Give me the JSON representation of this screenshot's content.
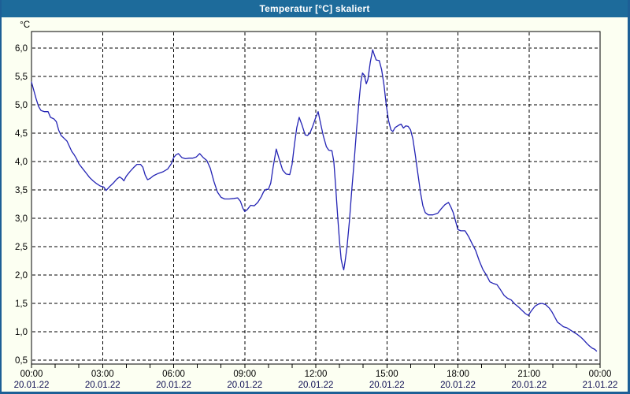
{
  "window": {
    "title": "Temperatur [°C] skaliert",
    "title_bar_color": "#1d6b9b",
    "border_color": "#1d5f96",
    "outer_background": "#fcfff2"
  },
  "chart_data": {
    "type": "line",
    "title": "Temperatur [°C] skaliert",
    "unit_label": "°C",
    "grid": "dashed-black",
    "legend": "none",
    "plot_background": "#ffffff",
    "line_color": "#2323b4",
    "axis_color": "#000000",
    "tick_text_color": "#000000",
    "date_text_color": "#0d0d52",
    "ylim": [
      0.431,
      6.292
    ],
    "yticks": [
      0.5,
      1.0,
      1.5,
      2.0,
      2.5,
      3.0,
      3.5,
      4.0,
      4.5,
      5.0,
      5.5,
      6.0
    ],
    "ytick_labels": [
      "0,5",
      "1,0",
      "1,5",
      "2,0",
      "2,5",
      "3,0",
      "3,5",
      "4,0",
      "4,5",
      "5,0",
      "5,5",
      "6,0"
    ],
    "x_hours_range": [
      0,
      24
    ],
    "x_minor_step_hours": 1,
    "x_major_ticks": [
      {
        "hour": 0,
        "time": "00:00",
        "date": "20.01.22"
      },
      {
        "hour": 3,
        "time": "03:00",
        "date": "20.01.22"
      },
      {
        "hour": 6,
        "time": "06:00",
        "date": "20.01.22"
      },
      {
        "hour": 9,
        "time": "09:00",
        "date": "20.01.22"
      },
      {
        "hour": 12,
        "time": "12:00",
        "date": "20.01.22"
      },
      {
        "hour": 15,
        "time": "15:00",
        "date": "20.01.22"
      },
      {
        "hour": 18,
        "time": "18:00",
        "date": "20.01.22"
      },
      {
        "hour": 21,
        "time": "21:00",
        "date": "20.01.22"
      },
      {
        "hour": 24,
        "time": "00:00",
        "date": "21.01.22"
      }
    ],
    "series": [
      {
        "name": "Temperatur",
        "points": [
          [
            0,
            5.4
          ],
          [
            0.1,
            5.25
          ],
          [
            0.2,
            5.1
          ],
          [
            0.3,
            4.97
          ],
          [
            0.4,
            4.9
          ],
          [
            0.55,
            4.88
          ],
          [
            0.7,
            4.88
          ],
          [
            0.8,
            4.78
          ],
          [
            0.95,
            4.75
          ],
          [
            1.05,
            4.7
          ],
          [
            1.15,
            4.55
          ],
          [
            1.25,
            4.46
          ],
          [
            1.4,
            4.4
          ],
          [
            1.5,
            4.36
          ],
          [
            1.6,
            4.27
          ],
          [
            1.7,
            4.18
          ],
          [
            1.8,
            4.12
          ],
          [
            1.9,
            4.05
          ],
          [
            2,
            3.96
          ],
          [
            2.15,
            3.88
          ],
          [
            2.3,
            3.8
          ],
          [
            2.45,
            3.72
          ],
          [
            2.6,
            3.66
          ],
          [
            2.75,
            3.61
          ],
          [
            2.9,
            3.57
          ],
          [
            3.05,
            3.55
          ],
          [
            3.15,
            3.49
          ],
          [
            3.3,
            3.56
          ],
          [
            3.45,
            3.62
          ],
          [
            3.6,
            3.69
          ],
          [
            3.72,
            3.73
          ],
          [
            3.82,
            3.7
          ],
          [
            3.9,
            3.66
          ],
          [
            4,
            3.74
          ],
          [
            4.15,
            3.82
          ],
          [
            4.3,
            3.89
          ],
          [
            4.45,
            3.95
          ],
          [
            4.6,
            3.95
          ],
          [
            4.7,
            3.9
          ],
          [
            4.8,
            3.76
          ],
          [
            4.9,
            3.68
          ],
          [
            5,
            3.7
          ],
          [
            5.15,
            3.75
          ],
          [
            5.35,
            3.79
          ],
          [
            5.55,
            3.82
          ],
          [
            5.75,
            3.87
          ],
          [
            5.9,
            3.96
          ],
          [
            6,
            4.07
          ],
          [
            6.1,
            4.12
          ],
          [
            6.2,
            4.14
          ],
          [
            6.35,
            4.07
          ],
          [
            6.5,
            4.05
          ],
          [
            6.65,
            4.06
          ],
          [
            6.8,
            4.06
          ],
          [
            6.95,
            4.08
          ],
          [
            7.1,
            4.14
          ],
          [
            7.25,
            4.07
          ],
          [
            7.4,
            4.02
          ],
          [
            7.55,
            3.88
          ],
          [
            7.7,
            3.65
          ],
          [
            7.85,
            3.46
          ],
          [
            8,
            3.37
          ],
          [
            8.15,
            3.34
          ],
          [
            8.35,
            3.34
          ],
          [
            8.55,
            3.35
          ],
          [
            8.7,
            3.36
          ],
          [
            8.82,
            3.3
          ],
          [
            8.92,
            3.18
          ],
          [
            9,
            3.12
          ],
          [
            9.1,
            3.15
          ],
          [
            9.25,
            3.23
          ],
          [
            9.4,
            3.22
          ],
          [
            9.55,
            3.28
          ],
          [
            9.7,
            3.38
          ],
          [
            9.8,
            3.47
          ],
          [
            9.9,
            3.51
          ],
          [
            10,
            3.51
          ],
          [
            10.1,
            3.62
          ],
          [
            10.2,
            3.9
          ],
          [
            10.33,
            4.22
          ],
          [
            10.45,
            4.05
          ],
          [
            10.6,
            3.85
          ],
          [
            10.75,
            3.78
          ],
          [
            10.9,
            3.77
          ],
          [
            11,
            3.95
          ],
          [
            11.1,
            4.3
          ],
          [
            11.2,
            4.6
          ],
          [
            11.3,
            4.78
          ],
          [
            11.42,
            4.64
          ],
          [
            11.55,
            4.47
          ],
          [
            11.65,
            4.46
          ],
          [
            11.75,
            4.5
          ],
          [
            11.85,
            4.6
          ],
          [
            12,
            4.78
          ],
          [
            12.1,
            4.88
          ],
          [
            12.2,
            4.68
          ],
          [
            12.32,
            4.45
          ],
          [
            12.45,
            4.26
          ],
          [
            12.55,
            4.2
          ],
          [
            12.68,
            4.19
          ],
          [
            12.76,
            4
          ],
          [
            12.84,
            3.55
          ],
          [
            12.92,
            3.05
          ],
          [
            13,
            2.6
          ],
          [
            13.07,
            2.28
          ],
          [
            13.13,
            2.16
          ],
          [
            13.18,
            2.09
          ],
          [
            13.24,
            2.25
          ],
          [
            13.32,
            2.5
          ],
          [
            13.42,
            2.95
          ],
          [
            13.52,
            3.5
          ],
          [
            13.62,
            4
          ],
          [
            13.72,
            4.55
          ],
          [
            13.82,
            5.05
          ],
          [
            13.9,
            5.4
          ],
          [
            13.97,
            5.56
          ],
          [
            14.05,
            5.52
          ],
          [
            14.13,
            5.37
          ],
          [
            14.2,
            5.45
          ],
          [
            14.3,
            5.75
          ],
          [
            14.4,
            5.97
          ],
          [
            14.47,
            5.88
          ],
          [
            14.55,
            5.79
          ],
          [
            14.68,
            5.78
          ],
          [
            14.78,
            5.62
          ],
          [
            14.88,
            5.35
          ],
          [
            14.97,
            5.02
          ],
          [
            15.07,
            4.72
          ],
          [
            15.17,
            4.56
          ],
          [
            15.25,
            4.53
          ],
          [
            15.35,
            4.6
          ],
          [
            15.5,
            4.64
          ],
          [
            15.6,
            4.66
          ],
          [
            15.7,
            4.59
          ],
          [
            15.8,
            4.63
          ],
          [
            15.9,
            4.62
          ],
          [
            16,
            4.56
          ],
          [
            16.1,
            4.4
          ],
          [
            16.2,
            4.12
          ],
          [
            16.32,
            3.75
          ],
          [
            16.42,
            3.45
          ],
          [
            16.52,
            3.22
          ],
          [
            16.62,
            3.1
          ],
          [
            16.75,
            3.06
          ],
          [
            16.95,
            3.06
          ],
          [
            17.15,
            3.09
          ],
          [
            17.3,
            3.17
          ],
          [
            17.45,
            3.24
          ],
          [
            17.6,
            3.28
          ],
          [
            17.7,
            3.2
          ],
          [
            17.8,
            3.1
          ],
          [
            17.9,
            2.95
          ],
          [
            18,
            2.8
          ],
          [
            18.12,
            2.78
          ],
          [
            18.3,
            2.78
          ],
          [
            18.45,
            2.68
          ],
          [
            18.6,
            2.55
          ],
          [
            18.75,
            2.43
          ],
          [
            18.9,
            2.25
          ],
          [
            19.05,
            2.1
          ],
          [
            19.2,
            2
          ],
          [
            19.35,
            1.88
          ],
          [
            19.5,
            1.85
          ],
          [
            19.65,
            1.83
          ],
          [
            19.8,
            1.74
          ],
          [
            19.95,
            1.64
          ],
          [
            20.1,
            1.59
          ],
          [
            20.25,
            1.56
          ],
          [
            20.4,
            1.49
          ],
          [
            20.55,
            1.44
          ],
          [
            20.7,
            1.38
          ],
          [
            20.85,
            1.32
          ],
          [
            20.97,
            1.29
          ],
          [
            21.1,
            1.37
          ],
          [
            21.25,
            1.45
          ],
          [
            21.4,
            1.49
          ],
          [
            21.55,
            1.5
          ],
          [
            21.7,
            1.48
          ],
          [
            21.85,
            1.42
          ],
          [
            21.97,
            1.35
          ],
          [
            22.1,
            1.25
          ],
          [
            22.2,
            1.17
          ],
          [
            22.3,
            1.14
          ],
          [
            22.45,
            1.09
          ],
          [
            22.6,
            1.07
          ],
          [
            22.75,
            1.03
          ],
          [
            22.9,
            0.99
          ],
          [
            23.05,
            0.95
          ],
          [
            23.2,
            0.9
          ],
          [
            23.3,
            0.86
          ],
          [
            23.45,
            0.79
          ],
          [
            23.55,
            0.75
          ],
          [
            23.67,
            0.71
          ],
          [
            23.78,
            0.69
          ],
          [
            23.85,
            0.66
          ]
        ]
      }
    ]
  }
}
